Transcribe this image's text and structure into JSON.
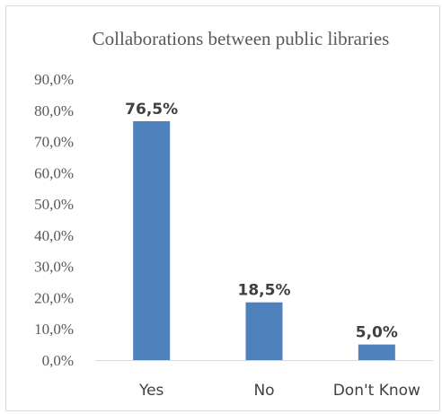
{
  "chart_data": {
    "type": "bar",
    "title": "Collaborations between public libraries",
    "categories": [
      "Yes",
      "No",
      "Don't Know"
    ],
    "values": [
      76.5,
      18.5,
      5.0
    ],
    "data_labels": [
      "76,5%",
      "18,5%",
      "5,0%"
    ],
    "ylim": [
      0,
      90
    ],
    "y_ticks": [
      "0,0%",
      "10,0%",
      "20,0%",
      "30,0%",
      "40,0%",
      "50,0%",
      "60,0%",
      "70,0%",
      "80,0%",
      "90,0%"
    ],
    "grid": false,
    "legend": "none",
    "bar_color": "#4f81bd",
    "axis_color": "#d9d9d9"
  }
}
